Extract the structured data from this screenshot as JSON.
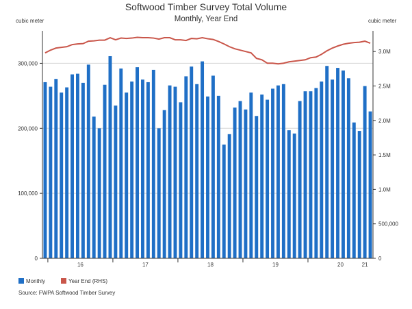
{
  "chart_data": {
    "type": "bar",
    "title": "Softwood Timber Survey Total Volume",
    "subtitle": "Monthly, Year End",
    "left_unit": "cubic meter",
    "right_unit": "cubic meter",
    "x_tick_labels": [
      "16",
      "17",
      "18",
      "19",
      "20",
      "21"
    ],
    "y_left": {
      "range": [
        0,
        350000
      ],
      "ticks": [
        0,
        100000,
        200000,
        300000
      ],
      "tick_labels": [
        "0",
        "100,000",
        "200,000",
        "300,000"
      ]
    },
    "y_right": {
      "range": [
        0,
        3300000
      ],
      "ticks": [
        0,
        500000,
        1000000,
        1500000,
        2000000,
        2500000,
        3000000
      ],
      "tick_labels": [
        "0",
        "500,000",
        "1.0M",
        "1.5M",
        "2.0M",
        "2.5M",
        "3.0M"
      ]
    },
    "series": [
      {
        "name": "Monthly",
        "type": "bar",
        "axis": "left",
        "color": "#1f6fc6",
        "values": [
          271000,
          264000,
          276000,
          255000,
          263000,
          283000,
          284000,
          270000,
          298000,
          218000,
          200000,
          267000,
          311000,
          235000,
          292000,
          255000,
          272000,
          294000,
          275000,
          271000,
          290000,
          200000,
          228000,
          266000,
          264000,
          240000,
          280000,
          295000,
          268000,
          303000,
          249000,
          281000,
          250000,
          175000,
          191000,
          232000,
          242000,
          229000,
          255000,
          219000,
          252000,
          244000,
          261000,
          266000,
          268000,
          197000,
          192000,
          242000,
          257000,
          257000,
          262000,
          272000,
          296000,
          275000,
          293000,
          289000,
          277000,
          209000,
          196000,
          265000,
          226000
        ]
      },
      {
        "name": "Year End (RHS)",
        "type": "line",
        "axis": "right",
        "color": "#c9564a",
        "values": [
          2980000,
          3020000,
          3050000,
          3060000,
          3070000,
          3100000,
          3110000,
          3115000,
          3150000,
          3155000,
          3165000,
          3165000,
          3200000,
          3170000,
          3195000,
          3190000,
          3195000,
          3205000,
          3200000,
          3200000,
          3195000,
          3180000,
          3200000,
          3200000,
          3170000,
          3170000,
          3160000,
          3190000,
          3185000,
          3200000,
          3185000,
          3175000,
          3145000,
          3110000,
          3070000,
          3040000,
          3020000,
          3000000,
          2980000,
          2900000,
          2880000,
          2830000,
          2830000,
          2820000,
          2830000,
          2850000,
          2860000,
          2870000,
          2880000,
          2910000,
          2920000,
          2960000,
          3010000,
          3050000,
          3080000,
          3105000,
          3120000,
          3130000,
          3135000,
          3150000,
          3120000
        ]
      }
    ],
    "legend": {
      "placement": "bottom-left",
      "entries": [
        "Monthly",
        "Year End (RHS)"
      ]
    },
    "source": "Source:  FWPA Softwood Timber Survey",
    "grid": true
  },
  "colors": {
    "bar": "#1f6fc6",
    "line": "#c9564a",
    "grid": "#d6d6d6"
  }
}
